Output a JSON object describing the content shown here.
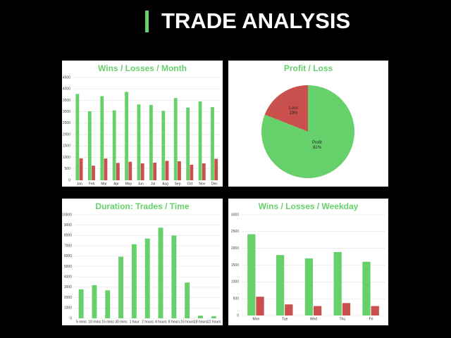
{
  "header": {
    "title": "TRADE ANALYSIS"
  },
  "chart_data": [
    {
      "type": "bar",
      "title": "Wins / Losses / Month",
      "categories": [
        "Jan",
        "Feb",
        "Mar",
        "Apr",
        "May",
        "Jun",
        "Jul",
        "Aug",
        "Sep",
        "Oct",
        "Nov",
        "Dec"
      ],
      "series": [
        {
          "color": "#66d16a",
          "values": [
            3780,
            3020,
            3680,
            3060,
            3870,
            3320,
            3300,
            3040,
            3600,
            3180,
            3450,
            3200
          ]
        },
        {
          "color": "#c9504d",
          "values": [
            960,
            640,
            950,
            760,
            810,
            740,
            770,
            850,
            830,
            680,
            740,
            940
          ]
        }
      ],
      "ylim": [
        0,
        4500
      ],
      "yticks": [
        0,
        500,
        1000,
        1500,
        2000,
        2500,
        3000,
        3500,
        4000,
        4500
      ],
      "grid": true
    },
    {
      "type": "pie",
      "title": "Profit / Loss",
      "categories": [
        "Loss",
        "Profit"
      ],
      "values": [
        19,
        81
      ],
      "value_labels": [
        "19%",
        "81%"
      ],
      "colors": [
        "#c9504d",
        "#66d16a"
      ]
    },
    {
      "type": "bar",
      "title": "Duration: Trades / Time",
      "categories": [
        "5 mins",
        "10 mins",
        "15 mins",
        "30 mins",
        "1 hour",
        "2 hours",
        "4 hours",
        "8 hours",
        "16 hours",
        "18 hours",
        "22 hours"
      ],
      "series": [
        {
          "color": "#66d16a",
          "values": [
            2800,
            3200,
            2700,
            5950,
            7150,
            7700,
            8750,
            8000,
            3450,
            250,
            200
          ]
        }
      ],
      "ylim": [
        0,
        10000
      ],
      "yticks": [
        0,
        1000,
        2000,
        3000,
        4000,
        5000,
        6000,
        7000,
        8000,
        9000,
        10000
      ],
      "grid": true
    },
    {
      "type": "bar",
      "title": "Wins / Losses / Weekday",
      "categories": [
        "Mon",
        "Tue",
        "Wed",
        "Thu",
        "Fri"
      ],
      "series": [
        {
          "color": "#66d16a",
          "values": [
            2420,
            1800,
            1700,
            1890,
            1600
          ]
        },
        {
          "color": "#c9504d",
          "values": [
            560,
            330,
            280,
            370,
            280
          ]
        }
      ],
      "ylim": [
        0,
        3000
      ],
      "yticks": [
        0,
        500,
        1000,
        1500,
        2000,
        2500,
        3000
      ],
      "grid": true
    }
  ]
}
